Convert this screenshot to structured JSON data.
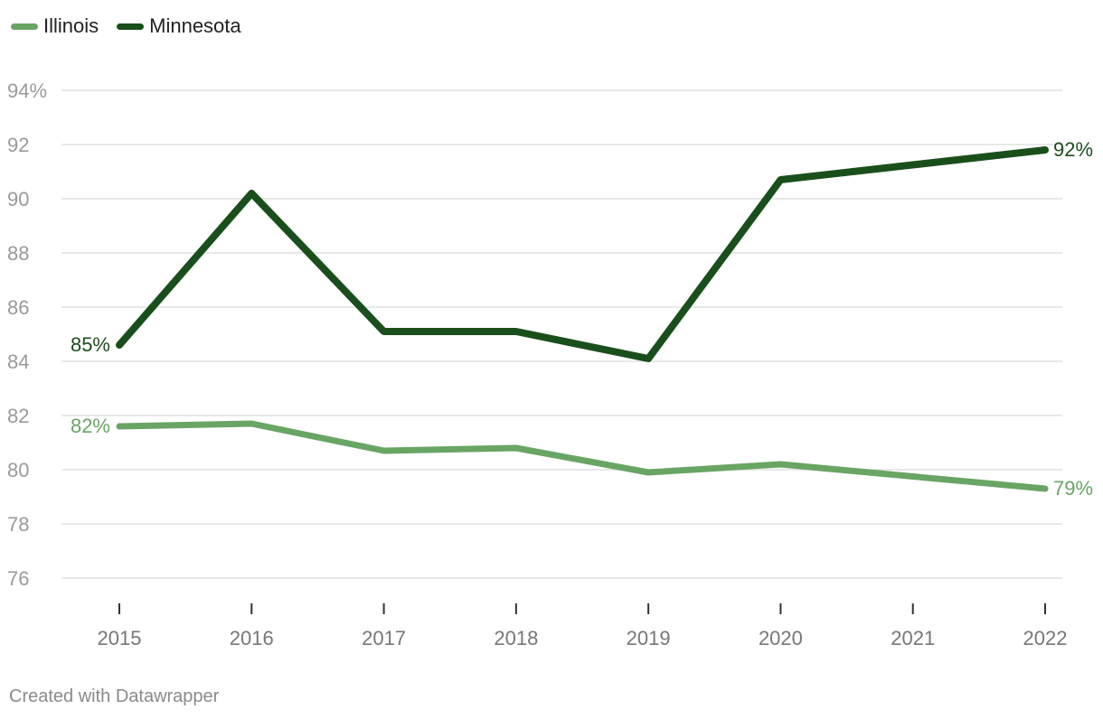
{
  "chart_data": {
    "type": "line",
    "x": [
      "2015",
      "2016",
      "2017",
      "2018",
      "2019",
      "2020",
      "2021",
      "2022"
    ],
    "series": [
      {
        "name": "Illinois",
        "color": "#69a564",
        "values": [
          81.6,
          81.7,
          80.7,
          80.8,
          79.9,
          80.2,
          79.75,
          79.3
        ],
        "start_label": "82%",
        "end_label": "79%"
      },
      {
        "name": "Minnesota",
        "color": "#1a4f1c",
        "values": [
          84.6,
          90.2,
          85.1,
          85.1,
          84.1,
          90.7,
          91.25,
          91.8
        ],
        "start_label": "85%",
        "end_label": "92%"
      }
    ],
    "ylim": [
      76,
      94
    ],
    "y_ticks": [
      {
        "value": 94,
        "label": "94%"
      },
      {
        "value": 92,
        "label": "92"
      },
      {
        "value": 90,
        "label": "90"
      },
      {
        "value": 88,
        "label": "88"
      },
      {
        "value": 86,
        "label": "86"
      },
      {
        "value": 84,
        "label": "84"
      },
      {
        "value": 82,
        "label": "82"
      },
      {
        "value": 80,
        "label": "80"
      },
      {
        "value": 78,
        "label": "78"
      },
      {
        "value": 76,
        "label": "76"
      }
    ],
    "grid": true,
    "legend_position": "top-left",
    "title": "",
    "xlabel": "",
    "ylabel": ""
  },
  "credit": "Created with Datawrapper"
}
